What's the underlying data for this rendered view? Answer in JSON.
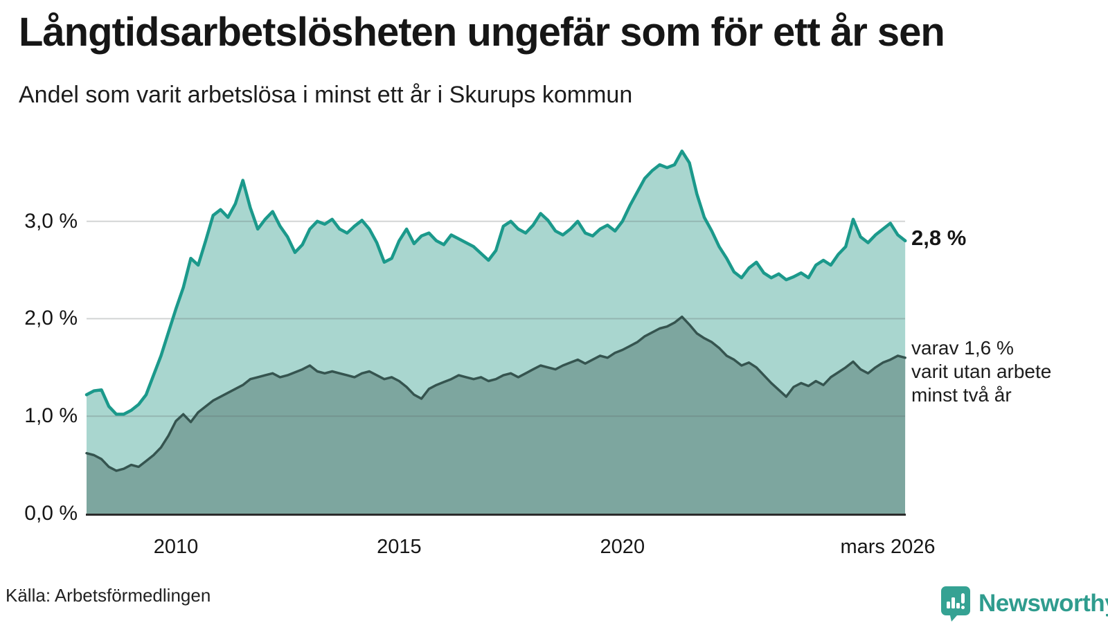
{
  "chart_data": {
    "type": "area",
    "title": "Långtidsarbetslösheten ungefär som för ett år sen",
    "subtitle": "Andel som varit arbetslösa i minst ett år i Skurups kommun",
    "source": "Källa: Arbetsförmedlingen",
    "grid": true,
    "x_domain": [
      2008,
      2026.33
    ],
    "y_domain": [
      0,
      3.85
    ],
    "y_ticks": [
      {
        "value": 0,
        "label": "0,0 %"
      },
      {
        "value": 1,
        "label": "1,0 %"
      },
      {
        "value": 2,
        "label": "2,0 %"
      },
      {
        "value": 3,
        "label": "3,0 %"
      }
    ],
    "x_ticks": [
      {
        "value": 2010,
        "label": "2010"
      },
      {
        "value": 2015,
        "label": "2015"
      },
      {
        "value": 2020,
        "label": "2020"
      },
      {
        "value": 2026.25,
        "label": "mars 2026"
      }
    ],
    "series": [
      {
        "name": "minst ett år",
        "line_color": "#1b998b",
        "fill_color": "#a9d6cf",
        "line_width": 4.5,
        "x_start": 2008,
        "x_step": 0.166667,
        "values": [
          1.22,
          1.26,
          1.27,
          1.1,
          1.02,
          1.02,
          1.06,
          1.12,
          1.22,
          1.42,
          1.62,
          1.86,
          2.1,
          2.32,
          2.62,
          2.55,
          2.8,
          3.06,
          3.12,
          3.04,
          3.18,
          3.42,
          3.14,
          2.92,
          3.02,
          3.1,
          2.95,
          2.84,
          2.68,
          2.76,
          2.92,
          3.0,
          2.97,
          3.02,
          2.92,
          2.88,
          2.95,
          3.01,
          2.92,
          2.78,
          2.58,
          2.62,
          2.8,
          2.92,
          2.77,
          2.85,
          2.88,
          2.8,
          2.76,
          2.86,
          2.82,
          2.78,
          2.74,
          2.67,
          2.6,
          2.7,
          2.95,
          3.0,
          2.92,
          2.88,
          2.96,
          3.08,
          3.01,
          2.9,
          2.86,
          2.92,
          3.0,
          2.88,
          2.85,
          2.92,
          2.96,
          2.9,
          3.0,
          3.16,
          3.3,
          3.44,
          3.52,
          3.58,
          3.55,
          3.58,
          3.72,
          3.6,
          3.28,
          3.04,
          2.9,
          2.74,
          2.62,
          2.48,
          2.42,
          2.52,
          2.58,
          2.47,
          2.42,
          2.46,
          2.4,
          2.43,
          2.47,
          2.42,
          2.55,
          2.6,
          2.55,
          2.66,
          2.74,
          3.02,
          2.84,
          2.78,
          2.86,
          2.92,
          2.98,
          2.86,
          2.8
        ]
      },
      {
        "name": "minst två år",
        "line_color": "#35544f",
        "fill_color": "#7da69f",
        "line_width": 3.5,
        "x_start": 2008,
        "x_step": 0.166667,
        "values": [
          0.62,
          0.6,
          0.56,
          0.48,
          0.44,
          0.46,
          0.5,
          0.48,
          0.54,
          0.6,
          0.68,
          0.8,
          0.95,
          1.02,
          0.94,
          1.04,
          1.1,
          1.16,
          1.2,
          1.24,
          1.28,
          1.32,
          1.38,
          1.4,
          1.42,
          1.44,
          1.4,
          1.42,
          1.45,
          1.48,
          1.52,
          1.46,
          1.44,
          1.46,
          1.44,
          1.42,
          1.4,
          1.44,
          1.46,
          1.42,
          1.38,
          1.4,
          1.36,
          1.3,
          1.22,
          1.18,
          1.28,
          1.32,
          1.35,
          1.38,
          1.42,
          1.4,
          1.38,
          1.4,
          1.36,
          1.38,
          1.42,
          1.44,
          1.4,
          1.44,
          1.48,
          1.52,
          1.5,
          1.48,
          1.52,
          1.55,
          1.58,
          1.54,
          1.58,
          1.62,
          1.6,
          1.65,
          1.68,
          1.72,
          1.76,
          1.82,
          1.86,
          1.9,
          1.92,
          1.96,
          2.02,
          1.94,
          1.85,
          1.8,
          1.76,
          1.7,
          1.62,
          1.58,
          1.52,
          1.55,
          1.5,
          1.42,
          1.34,
          1.27,
          1.2,
          1.3,
          1.34,
          1.31,
          1.36,
          1.32,
          1.4,
          1.45,
          1.5,
          1.56,
          1.48,
          1.44,
          1.5,
          1.55,
          1.58,
          1.62,
          1.6
        ]
      }
    ],
    "annotations": {
      "latest_total": "2,8 %",
      "latest_secondary_lines": [
        "varav 1,6 %",
        "varit utan arbete",
        "minst två år"
      ]
    }
  },
  "branding": {
    "logo_text": "Newsworthy",
    "logo_color": "#2f9c8e",
    "icon_color": "#35a293"
  }
}
